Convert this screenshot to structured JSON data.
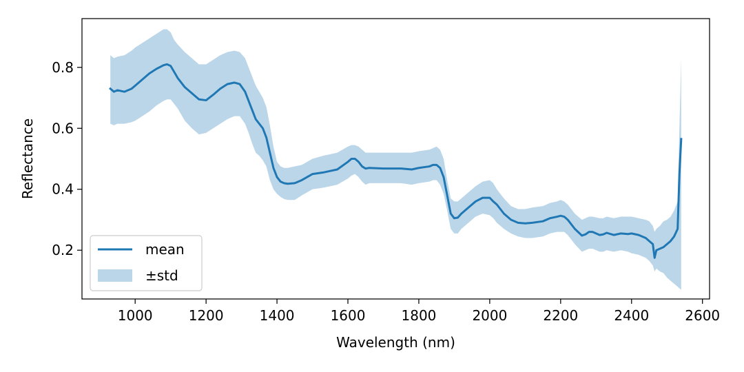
{
  "chart_data": {
    "type": "line",
    "title": "",
    "xlabel": "Wavelength (nm)",
    "ylabel": "Reflectance",
    "xlim": [
      850,
      2620
    ],
    "ylim": [
      0.04,
      0.96
    ],
    "xticks": [
      1000,
      1200,
      1400,
      1600,
      1800,
      2000,
      2200,
      2400,
      2600
    ],
    "xtick_labels": [
      "1000",
      "1200",
      "1400",
      "1600",
      "1800",
      "2000",
      "2200",
      "2400",
      "2600"
    ],
    "yticks": [
      0.2,
      0.4,
      0.6,
      0.8
    ],
    "ytick_labels": [
      "0.2",
      "0.4",
      "0.6",
      "0.8"
    ],
    "grid": false,
    "legend": {
      "position": "lower-left",
      "entries": [
        "mean",
        "±std"
      ]
    },
    "colors": {
      "mean": "#1f77b4",
      "band": "#1f77b4",
      "band_opacity": 0.3
    },
    "series": [
      {
        "name": "mean",
        "style": "line",
        "x": [
          930,
          940,
          950,
          970,
          990,
          1000,
          1020,
          1040,
          1060,
          1080,
          1090,
          1100,
          1110,
          1120,
          1140,
          1160,
          1180,
          1200,
          1220,
          1240,
          1260,
          1280,
          1295,
          1310,
          1320,
          1330,
          1340,
          1350,
          1360,
          1370,
          1380,
          1390,
          1400,
          1410,
          1420,
          1430,
          1450,
          1470,
          1500,
          1530,
          1550,
          1570,
          1600,
          1610,
          1620,
          1630,
          1640,
          1650,
          1660,
          1700,
          1750,
          1780,
          1800,
          1830,
          1840,
          1850,
          1860,
          1870,
          1880,
          1890,
          1900,
          1910,
          1920,
          1940,
          1960,
          1980,
          2000,
          2010,
          2020,
          2040,
          2060,
          2080,
          2100,
          2120,
          2150,
          2170,
          2190,
          2200,
          2210,
          2220,
          2240,
          2260,
          2270,
          2280,
          2290,
          2310,
          2320,
          2330,
          2350,
          2370,
          2390,
          2400,
          2420,
          2440,
          2450,
          2460,
          2465,
          2470,
          2480,
          2490,
          2500,
          2510,
          2520,
          2530,
          2535,
          2540
        ],
        "y": [
          0.73,
          0.72,
          0.725,
          0.72,
          0.73,
          0.74,
          0.76,
          0.78,
          0.795,
          0.807,
          0.81,
          0.805,
          0.785,
          0.765,
          0.735,
          0.715,
          0.695,
          0.692,
          0.71,
          0.73,
          0.745,
          0.75,
          0.745,
          0.72,
          0.69,
          0.66,
          0.63,
          0.615,
          0.6,
          0.57,
          0.52,
          0.47,
          0.44,
          0.425,
          0.42,
          0.418,
          0.42,
          0.43,
          0.45,
          0.455,
          0.46,
          0.465,
          0.49,
          0.5,
          0.5,
          0.49,
          0.475,
          0.468,
          0.47,
          0.468,
          0.468,
          0.465,
          0.47,
          0.475,
          0.48,
          0.48,
          0.47,
          0.44,
          0.38,
          0.32,
          0.305,
          0.307,
          0.32,
          0.34,
          0.36,
          0.372,
          0.372,
          0.36,
          0.35,
          0.32,
          0.3,
          0.29,
          0.288,
          0.29,
          0.295,
          0.305,
          0.31,
          0.313,
          0.31,
          0.3,
          0.27,
          0.248,
          0.252,
          0.26,
          0.26,
          0.25,
          0.252,
          0.257,
          0.25,
          0.255,
          0.253,
          0.255,
          0.25,
          0.24,
          0.23,
          0.22,
          0.175,
          0.2,
          0.205,
          0.21,
          0.22,
          0.23,
          0.245,
          0.27,
          0.45,
          0.565
        ]
      },
      {
        "name": "±std",
        "style": "band",
        "x": [
          930,
          940,
          950,
          970,
          990,
          1000,
          1020,
          1040,
          1060,
          1080,
          1090,
          1100,
          1110,
          1120,
          1140,
          1160,
          1180,
          1200,
          1220,
          1240,
          1260,
          1280,
          1295,
          1310,
          1320,
          1330,
          1340,
          1350,
          1360,
          1370,
          1380,
          1390,
          1400,
          1410,
          1420,
          1430,
          1450,
          1470,
          1500,
          1530,
          1550,
          1570,
          1600,
          1610,
          1620,
          1630,
          1640,
          1650,
          1660,
          1700,
          1750,
          1780,
          1800,
          1830,
          1840,
          1850,
          1860,
          1870,
          1880,
          1890,
          1900,
          1910,
          1920,
          1940,
          1960,
          1980,
          2000,
          2010,
          2020,
          2040,
          2060,
          2080,
          2100,
          2120,
          2150,
          2170,
          2190,
          2200,
          2210,
          2220,
          2240,
          2260,
          2270,
          2280,
          2290,
          2310,
          2320,
          2330,
          2350,
          2370,
          2390,
          2400,
          2420,
          2440,
          2450,
          2460,
          2465,
          2470,
          2480,
          2490,
          2500,
          2510,
          2520,
          2530,
          2535,
          2540
        ],
        "upper": [
          0.84,
          0.83,
          0.835,
          0.84,
          0.855,
          0.865,
          0.88,
          0.895,
          0.91,
          0.925,
          0.925,
          0.915,
          0.89,
          0.875,
          0.85,
          0.83,
          0.81,
          0.81,
          0.825,
          0.84,
          0.85,
          0.855,
          0.85,
          0.83,
          0.8,
          0.77,
          0.74,
          0.72,
          0.7,
          0.67,
          0.61,
          0.54,
          0.49,
          0.475,
          0.47,
          0.47,
          0.475,
          0.48,
          0.5,
          0.51,
          0.515,
          0.52,
          0.54,
          0.545,
          0.545,
          0.54,
          0.53,
          0.52,
          0.52,
          0.52,
          0.52,
          0.52,
          0.525,
          0.53,
          0.535,
          0.54,
          0.53,
          0.5,
          0.43,
          0.37,
          0.36,
          0.36,
          0.37,
          0.39,
          0.41,
          0.425,
          0.43,
          0.42,
          0.4,
          0.37,
          0.345,
          0.335,
          0.335,
          0.34,
          0.345,
          0.355,
          0.36,
          0.365,
          0.36,
          0.35,
          0.32,
          0.3,
          0.305,
          0.31,
          0.31,
          0.305,
          0.305,
          0.31,
          0.305,
          0.31,
          0.31,
          0.31,
          0.305,
          0.3,
          0.295,
          0.28,
          0.26,
          0.27,
          0.28,
          0.295,
          0.3,
          0.31,
          0.33,
          0.36,
          0.6,
          0.83
        ],
        "lower": [
          0.615,
          0.61,
          0.615,
          0.615,
          0.62,
          0.625,
          0.64,
          0.655,
          0.675,
          0.69,
          0.695,
          0.695,
          0.68,
          0.665,
          0.625,
          0.6,
          0.58,
          0.585,
          0.6,
          0.615,
          0.63,
          0.64,
          0.64,
          0.615,
          0.585,
          0.55,
          0.52,
          0.51,
          0.495,
          0.475,
          0.43,
          0.4,
          0.385,
          0.375,
          0.368,
          0.365,
          0.365,
          0.38,
          0.4,
          0.405,
          0.41,
          0.415,
          0.435,
          0.445,
          0.45,
          0.44,
          0.425,
          0.415,
          0.42,
          0.42,
          0.42,
          0.415,
          0.42,
          0.425,
          0.43,
          0.43,
          0.415,
          0.385,
          0.33,
          0.27,
          0.255,
          0.255,
          0.27,
          0.29,
          0.31,
          0.32,
          0.315,
          0.305,
          0.29,
          0.27,
          0.255,
          0.245,
          0.24,
          0.24,
          0.245,
          0.255,
          0.26,
          0.26,
          0.26,
          0.25,
          0.22,
          0.195,
          0.2,
          0.205,
          0.205,
          0.195,
          0.195,
          0.2,
          0.195,
          0.2,
          0.195,
          0.19,
          0.185,
          0.175,
          0.165,
          0.15,
          0.13,
          0.14,
          0.13,
          0.125,
          0.11,
          0.1,
          0.09,
          0.08,
          0.075,
          0.07
        ]
      }
    ]
  }
}
